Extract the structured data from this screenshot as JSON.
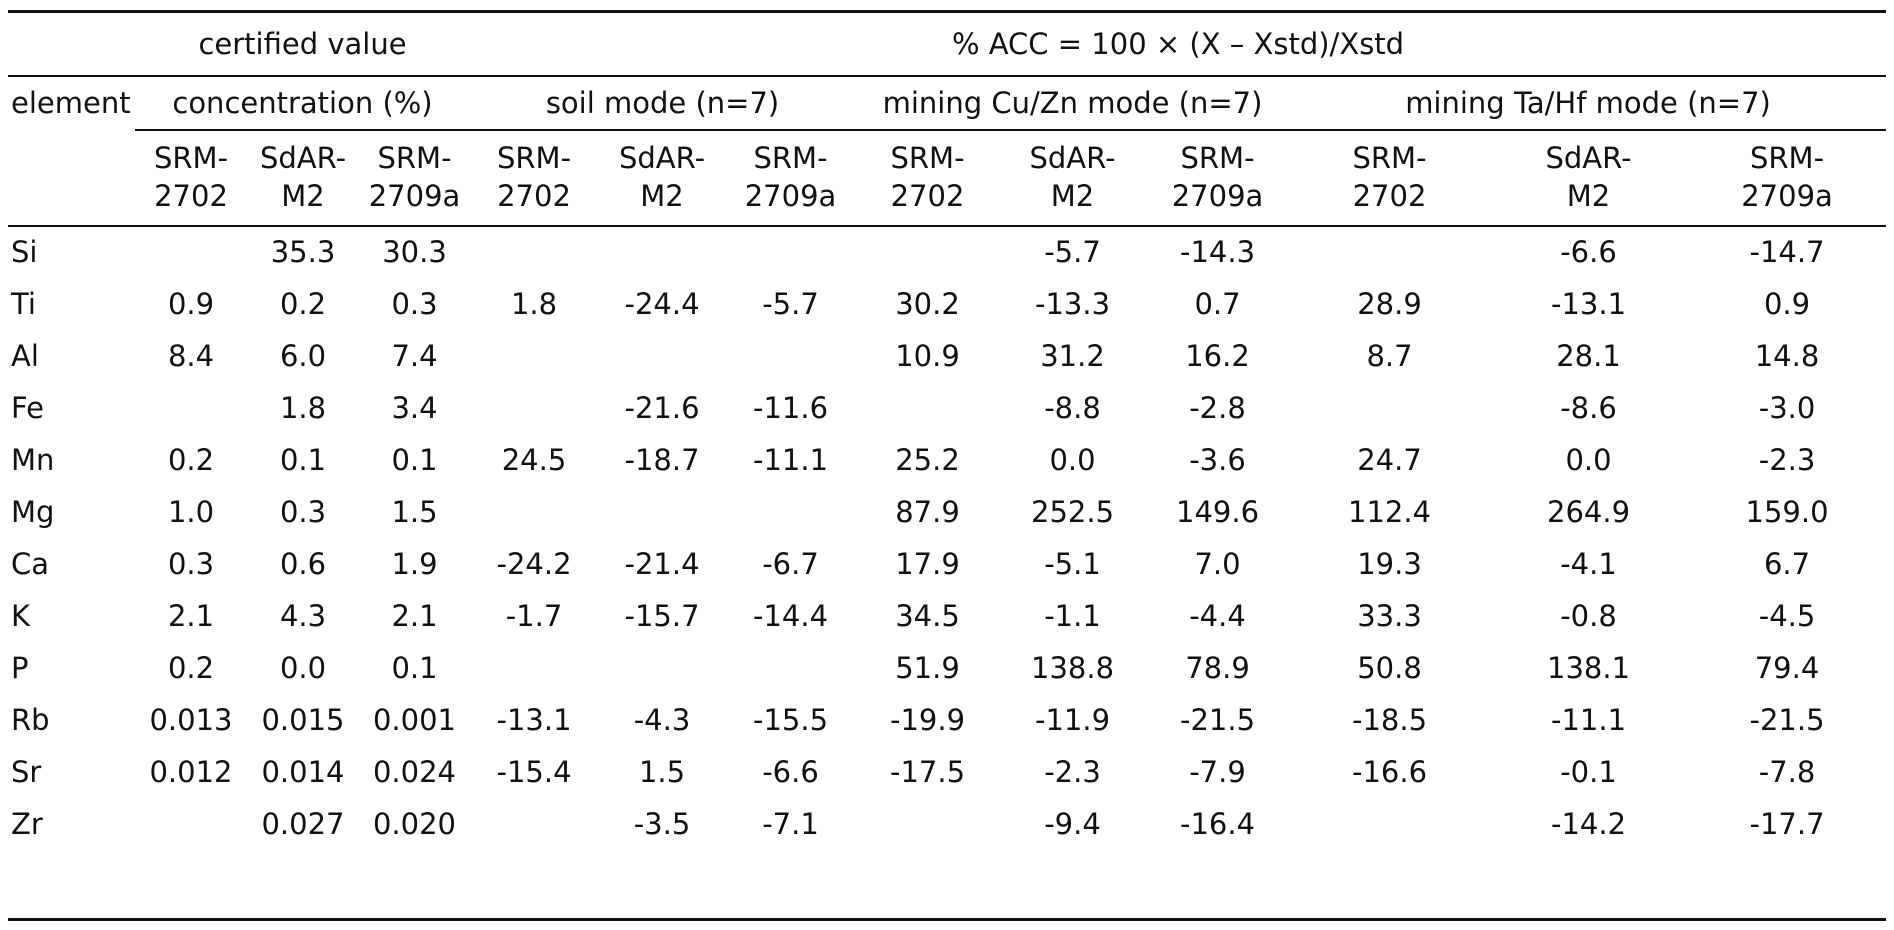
{
  "page": {
    "background": "#ffffff",
    "text_color": "#111111",
    "rule_color": "#111111"
  },
  "chart_data": {
    "type": "table",
    "top_headers": {
      "certified_value": "certified value",
      "acc_formula": "% ACC = 100 × (X – Xstd)/Xstd"
    },
    "group_headers": {
      "element": "element",
      "concentration": "concentration (%)",
      "soil_mode": "soil mode (n=7)",
      "mining_cuzn_mode": "mining Cu/Zn mode (n=7)",
      "mining_tahf_mode": "mining Ta/Hf mode (n=7)"
    },
    "standards": [
      "SRM-2702",
      "SdAR-M2",
      "SRM-2709a"
    ],
    "rows": [
      {
        "element": "Si",
        "values": [
          "",
          "35.3",
          "30.3",
          "",
          "",
          "",
          "",
          "-5.7",
          "-14.3",
          "",
          "-6.6",
          "-14.7"
        ]
      },
      {
        "element": "Ti",
        "values": [
          "0.9",
          "0.2",
          "0.3",
          "1.8",
          "-24.4",
          "-5.7",
          "30.2",
          "-13.3",
          "0.7",
          "28.9",
          "-13.1",
          "0.9"
        ]
      },
      {
        "element": "Al",
        "values": [
          "8.4",
          "6.0",
          "7.4",
          "",
          "",
          "",
          "10.9",
          "31.2",
          "16.2",
          "8.7",
          "28.1",
          "14.8"
        ]
      },
      {
        "element": "Fe",
        "values": [
          "",
          "1.8",
          "3.4",
          "",
          "-21.6",
          "-11.6",
          "",
          "-8.8",
          "-2.8",
          "",
          "-8.6",
          "-3.0"
        ]
      },
      {
        "element": "Mn",
        "values": [
          "0.2",
          "0.1",
          "0.1",
          "24.5",
          "-18.7",
          "-11.1",
          "25.2",
          "0.0",
          "-3.6",
          "24.7",
          "0.0",
          "-2.3"
        ]
      },
      {
        "element": "Mg",
        "values": [
          "1.0",
          "0.3",
          "1.5",
          "",
          "",
          "",
          "87.9",
          "252.5",
          "149.6",
          "112.4",
          "264.9",
          "159.0"
        ]
      },
      {
        "element": "Ca",
        "values": [
          "0.3",
          "0.6",
          "1.9",
          "-24.2",
          "-21.4",
          "-6.7",
          "17.9",
          "-5.1",
          "7.0",
          "19.3",
          "-4.1",
          "6.7"
        ]
      },
      {
        "element": "K",
        "values": [
          "2.1",
          "4.3",
          "2.1",
          "-1.7",
          "-15.7",
          "-14.4",
          "34.5",
          "-1.1",
          "-4.4",
          "33.3",
          "-0.8",
          "-4.5"
        ]
      },
      {
        "element": "P",
        "values": [
          "0.2",
          "0.0",
          "0.1",
          "",
          "",
          "",
          "51.9",
          "138.8",
          "78.9",
          "50.8",
          "138.1",
          "79.4"
        ]
      },
      {
        "element": "Rb",
        "values": [
          "0.013",
          "0.015",
          "0.001",
          "-13.1",
          "-4.3",
          "-15.5",
          "-19.9",
          "-11.9",
          "-21.5",
          "-18.5",
          "-11.1",
          "-21.5"
        ]
      },
      {
        "element": "Sr",
        "values": [
          "0.012",
          "0.014",
          "0.024",
          "-15.4",
          "1.5",
          "-6.6",
          "-17.5",
          "-2.3",
          "-7.9",
          "-16.6",
          "-0.1",
          "-7.8"
        ]
      },
      {
        "element": "Zr",
        "values": [
          "",
          "0.027",
          "0.020",
          "",
          "-3.5",
          "-7.1",
          "",
          "-9.4",
          "-16.4",
          "",
          "-14.2",
          "-17.7"
        ]
      }
    ]
  }
}
